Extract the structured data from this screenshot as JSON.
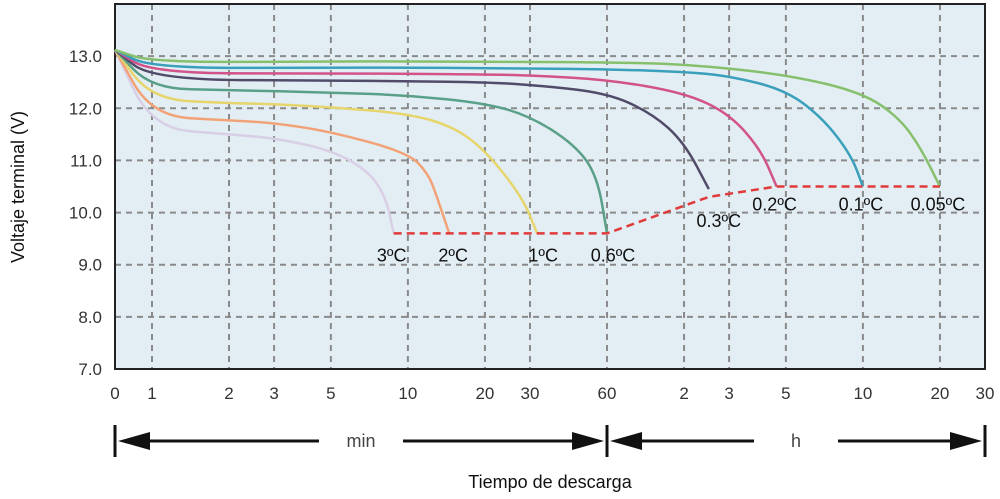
{
  "chart_data": {
    "type": "line",
    "xlabel": "Tiempo de descarga",
    "ylabel": "Voltaje terminal (V)",
    "ylim": [
      7.0,
      14.0
    ],
    "yticks": [
      7.0,
      8.0,
      9.0,
      10.0,
      11.0,
      12.0,
      13.0
    ],
    "ytick_labels": [
      "7.0",
      "8.0",
      "9.0",
      "10.0",
      "11.0",
      "12.0",
      "13.0"
    ],
    "x_scale": "log",
    "x_segments": [
      {
        "unit": "min",
        "ticks": [
          0,
          1,
          2,
          3,
          5,
          10,
          20,
          30,
          60
        ],
        "tick_labels": [
          "0",
          "1",
          "2",
          "3",
          "5",
          "10",
          "20",
          "30",
          "60"
        ]
      },
      {
        "unit": "h",
        "ticks": [
          1,
          2,
          3,
          5,
          10,
          20,
          30
        ],
        "tick_labels": [
          "",
          "2",
          "3",
          "5",
          "10",
          "20",
          "30"
        ]
      }
    ],
    "spans": [
      {
        "label": "min",
        "from_min": 0,
        "to_min": 60
      },
      {
        "label": "h",
        "from_min": 60,
        "to_min": 1800
      }
    ],
    "grid": true,
    "background": "#e3eef4",
    "series": [
      {
        "name": "3ºC",
        "color": "#d8cfe6",
        "points": [
          [
            0,
            13.12
          ],
          [
            1,
            11.62
          ],
          [
            2,
            11.5
          ],
          [
            3,
            11.43
          ],
          [
            5,
            11.2
          ],
          [
            7,
            10.8
          ],
          [
            8.2,
            10.3
          ],
          [
            8.8,
            9.6
          ]
        ]
      },
      {
        "name": "2ºC",
        "color": "#f2a277",
        "points": [
          [
            0,
            13.12
          ],
          [
            1,
            11.85
          ],
          [
            2,
            11.77
          ],
          [
            3,
            11.72
          ],
          [
            5,
            11.55
          ],
          [
            10,
            11.15
          ],
          [
            12,
            10.75
          ],
          [
            13,
            10.3
          ],
          [
            14.5,
            9.6
          ]
        ]
      },
      {
        "name": "1ºC",
        "color": "#e6d56c",
        "points": [
          [
            0,
            13.12
          ],
          [
            1,
            12.17
          ],
          [
            2,
            12.1
          ],
          [
            3,
            12.08
          ],
          [
            5,
            12.02
          ],
          [
            10,
            11.9
          ],
          [
            15,
            11.65
          ],
          [
            20,
            11.2
          ],
          [
            28,
            10.3
          ],
          [
            32,
            9.6
          ]
        ]
      },
      {
        "name": "0.6ºC",
        "color": "#5aa088",
        "points": [
          [
            0,
            13.12
          ],
          [
            1,
            12.38
          ],
          [
            2,
            12.35
          ],
          [
            5,
            12.3
          ],
          [
            10,
            12.25
          ],
          [
            20,
            12.1
          ],
          [
            30,
            11.85
          ],
          [
            45,
            11.3
          ],
          [
            55,
            10.7
          ],
          [
            60,
            9.6
          ]
        ]
      },
      {
        "name": "0.3ºC",
        "color": "#514b6a",
        "points": [
          [
            0,
            13.12
          ],
          [
            1,
            12.55
          ],
          [
            5,
            12.53
          ],
          [
            10,
            12.52
          ],
          [
            20,
            12.5
          ],
          [
            30,
            12.45
          ],
          [
            60,
            12.3
          ],
          [
            90,
            11.9
          ],
          [
            120,
            11.35
          ],
          [
            150,
            10.45
          ]
        ]
      },
      {
        "name": "0.2ºC",
        "color": "#d25389",
        "points": [
          [
            0,
            13.12
          ],
          [
            1,
            12.67
          ],
          [
            5,
            12.67
          ],
          [
            10,
            12.66
          ],
          [
            20,
            12.65
          ],
          [
            30,
            12.63
          ],
          [
            60,
            12.55
          ],
          [
            120,
            12.3
          ],
          [
            180,
            11.9
          ],
          [
            240,
            11.2
          ],
          [
            276,
            10.5
          ]
        ]
      },
      {
        "name": "0.1ºC",
        "color": "#3a9fbb",
        "points": [
          [
            0,
            13.12
          ],
          [
            1,
            12.77
          ],
          [
            5,
            12.78
          ],
          [
            10,
            12.78
          ],
          [
            20,
            12.77
          ],
          [
            30,
            12.76
          ],
          [
            60,
            12.75
          ],
          [
            120,
            12.7
          ],
          [
            180,
            12.62
          ],
          [
            300,
            12.35
          ],
          [
            420,
            11.8
          ],
          [
            540,
            11.1
          ],
          [
            600,
            10.5
          ]
        ]
      },
      {
        "name": "0.05ºC",
        "color": "#86c06c",
        "points": [
          [
            0,
            13.12
          ],
          [
            1,
            12.88
          ],
          [
            5,
            12.9
          ],
          [
            10,
            12.9
          ],
          [
            20,
            12.89
          ],
          [
            30,
            12.89
          ],
          [
            60,
            12.88
          ],
          [
            120,
            12.85
          ],
          [
            300,
            12.65
          ],
          [
            600,
            12.3
          ],
          [
            840,
            11.8
          ],
          [
            1020,
            11.2
          ],
          [
            1200,
            10.5
          ]
        ]
      }
    ],
    "cutoff_line": {
      "color": "#e03a3a",
      "points": [
        [
          8.8,
          9.6
        ],
        [
          60,
          9.6
        ],
        [
          150,
          10.3
        ],
        [
          276,
          10.5
        ],
        [
          1200,
          10.5
        ]
      ]
    },
    "annotations": [
      {
        "text": "3ºC",
        "x": 8.8,
        "y": 9.6,
        "placement": "below-left"
      },
      {
        "text": "2ºC",
        "x": 14.5,
        "y": 9.6,
        "placement": "below"
      },
      {
        "text": "1ºC",
        "x": 32,
        "y": 9.6,
        "placement": "below"
      },
      {
        "text": "0.6ºC",
        "x": 60,
        "y": 9.6,
        "placement": "below"
      },
      {
        "text": "0.3ºC",
        "x": 150,
        "y": 10.3,
        "placement": "below"
      },
      {
        "text": "0.2ºC",
        "x": 276,
        "y": 10.5,
        "placement": "below"
      },
      {
        "text": "0.1ºC",
        "x": 600,
        "y": 10.5,
        "placement": "below"
      },
      {
        "text": "0.05ºC",
        "x": 1200,
        "y": 10.5,
        "placement": "below"
      }
    ]
  }
}
